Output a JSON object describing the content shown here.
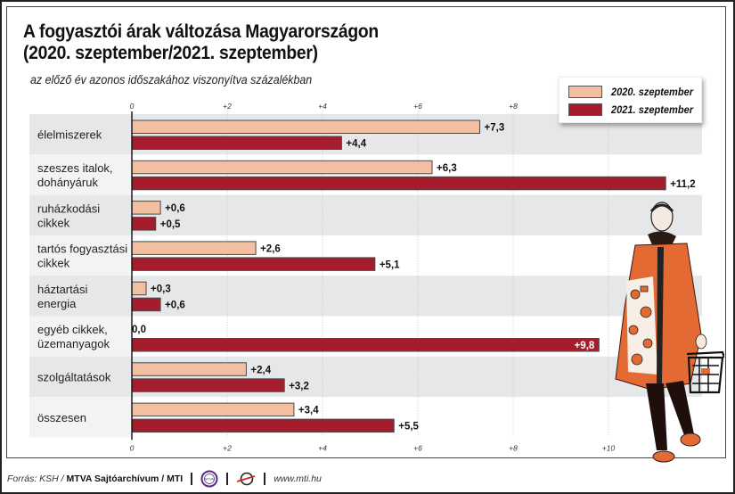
{
  "header": {
    "title_line1": "A fogyasztói árak változása Magyarországon",
    "title_line2": "(2020. szeptember/2021. szeptember)",
    "subtitle": "az előző év azonos időszakához viszonyítva százalékban"
  },
  "colors": {
    "series_2020": "#f2bfa0",
    "series_2021": "#a51c2c",
    "band": "#e6e7e9",
    "band_light": "#f2f3f4"
  },
  "chart_data": {
    "type": "bar",
    "orientation": "horizontal",
    "title": "A fogyasztói árak változása Magyarországon (2020. szeptember/2021. szeptember)",
    "subtitle": "az előző év azonos időszakához viszonyítva százalékban",
    "categories": [
      [
        "élelmiszerek"
      ],
      [
        "szeszes italok,",
        "dohányáruk"
      ],
      [
        "ruházkodási",
        "cikkek"
      ],
      [
        "tartós fogyasztási",
        "cikkek"
      ],
      [
        "háztartási",
        "energia"
      ],
      [
        "egyéb cikkek,",
        "üzemanyagok"
      ],
      [
        "szolgáltatások"
      ],
      [
        "összesen"
      ]
    ],
    "series": [
      {
        "name": "2020. szeptember",
        "values": [
          7.3,
          6.3,
          0.6,
          2.6,
          0.3,
          0.0,
          2.4,
          3.4
        ],
        "labels": [
          "+7,3",
          "+6,3",
          "+0,6",
          "+2,6",
          "+0,3",
          "0,0",
          "+2,4",
          "+3,4"
        ]
      },
      {
        "name": "2021. szeptember",
        "values": [
          4.4,
          11.2,
          0.5,
          5.1,
          0.6,
          9.8,
          3.2,
          5.5
        ],
        "labels": [
          "+4,4",
          "+11,2",
          "+0,5",
          "+5,1",
          "+0,6",
          "+9,8",
          "+3,2",
          "+5,5"
        ]
      }
    ],
    "xlim": [
      0,
      11.5
    ],
    "xticks": [
      0,
      2,
      4,
      6,
      8,
      10
    ],
    "xtick_labels": [
      "0",
      "+2",
      "+4",
      "+6",
      "+8",
      "+10"
    ],
    "grid": true,
    "legend_position": "top-right"
  },
  "legend": {
    "items": [
      {
        "label": "2020. szeptember"
      },
      {
        "label": "2021. szeptember"
      }
    ]
  },
  "footer": {
    "source_prefix": "Forrás: KSH /",
    "source_bold": "MTVA Sajtóarchívum / MTI",
    "mtva_logo_text": "MTVA",
    "website": "www.mti.hu"
  }
}
